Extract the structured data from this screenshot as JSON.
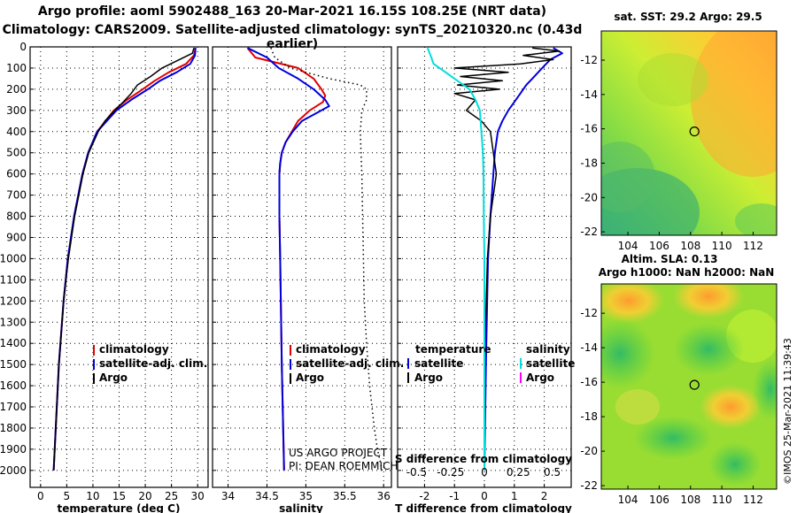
{
  "title_line1": "Argo profile: aoml 5902488_163 20-Mar-2021 16.15S 108.25E (NRT data)",
  "title_line2": "Climatology: CARS2009. Satellite-adjusted climatology: synTS_20210320.nc (0.43d earlier)",
  "y_ticks": [
    "0",
    "100",
    "200",
    "300",
    "400",
    "500",
    "600",
    "700",
    "800",
    "900",
    "1000",
    "1100",
    "1200",
    "1300",
    "1400",
    "1500",
    "1600",
    "1700",
    "1800",
    "1900",
    "2000"
  ],
  "colors": {
    "climatology": "#e00000",
    "satellite": "#0000dd",
    "argo": "#000000",
    "cyan": "#00dddd",
    "magenta": "#ff00ff"
  },
  "chart_data": [
    {
      "type": "line",
      "name": "temperature profile",
      "xlabel": "temperature (deg C)",
      "ylabel": "depth (dbar)",
      "xlim": [
        -2,
        32
      ],
      "ylim": [
        2080,
        0
      ],
      "x_ticks": [
        "0",
        "5",
        "10",
        "15",
        "20",
        "25",
        "30"
      ],
      "legend": [
        "climatology",
        "satellite-adj. clim.",
        "Argo"
      ],
      "series": [
        {
          "name": "climatology",
          "depth": [
            5,
            40,
            80,
            120,
            160,
            200,
            250,
            300,
            400,
            500,
            600,
            800,
            1000,
            1200,
            1500,
            2000
          ],
          "values": [
            29.6,
            29.3,
            27.8,
            24.5,
            21.8,
            19.5,
            16.5,
            14.0,
            10.8,
            9.1,
            8.0,
            6.4,
            5.2,
            4.4,
            3.5,
            2.5
          ]
        },
        {
          "name": "satellite-adj. clim.",
          "depth": [
            5,
            40,
            80,
            120,
            160,
            200,
            250,
            300,
            400,
            500,
            600,
            800,
            1000,
            1200,
            1500,
            2000
          ],
          "values": [
            29.6,
            29.5,
            28.6,
            26.0,
            22.8,
            20.5,
            17.3,
            14.5,
            10.8,
            9.1,
            8.0,
            6.4,
            5.2,
            4.4,
            3.5,
            2.5
          ]
        },
        {
          "name": "Argo",
          "depth": [
            5,
            30,
            60,
            100,
            140,
            180,
            220,
            260,
            300,
            350,
            400,
            500,
            600,
            800,
            1000,
            1200,
            1500,
            2000
          ],
          "values": [
            29.3,
            29.0,
            26.5,
            23.2,
            21.0,
            18.5,
            17.3,
            15.8,
            14.2,
            12.3,
            11.0,
            9.2,
            8.1,
            6.5,
            5.3,
            4.4,
            3.5,
            2.5
          ]
        }
      ]
    },
    {
      "type": "line",
      "name": "salinity profile",
      "xlabel": "salinity",
      "ylabel": "depth (dbar)",
      "xlim": [
        33.8,
        36.1
      ],
      "ylim": [
        2080,
        0
      ],
      "x_ticks": [
        "34",
        "34.5",
        "35",
        "35.5",
        "36"
      ],
      "legend": [
        "climatology",
        "satellite-adj. clim.",
        "Argo"
      ],
      "annotations": [
        "US ARGO PROJECT",
        "PI: DEAN ROEMMICH"
      ],
      "series": [
        {
          "name": "climatology",
          "depth": [
            5,
            50,
            100,
            150,
            200,
            230,
            260,
            300,
            350,
            400,
            450,
            500,
            550,
            600,
            700,
            800,
            1000,
            1500,
            2000
          ],
          "values": [
            34.25,
            34.35,
            34.9,
            35.1,
            35.2,
            35.25,
            35.22,
            35.05,
            34.9,
            34.82,
            34.74,
            34.69,
            34.67,
            34.66,
            34.66,
            34.66,
            34.67,
            34.69,
            34.72
          ]
        },
        {
          "name": "satellite-adj. clim.",
          "depth": [
            5,
            50,
            100,
            150,
            200,
            250,
            280,
            300,
            350,
            400,
            450,
            500,
            550,
            600,
            700,
            800,
            1000,
            1500,
            2000
          ],
          "values": [
            34.25,
            34.5,
            34.65,
            34.9,
            35.1,
            35.25,
            35.3,
            35.2,
            34.95,
            34.83,
            34.74,
            34.69,
            34.67,
            34.66,
            34.66,
            34.66,
            34.67,
            34.69,
            34.72
          ]
        },
        {
          "name": "Argo",
          "depth": [
            5,
            50,
            100,
            150,
            180,
            200,
            250,
            300,
            400,
            500,
            600,
            800,
            1000,
            1200,
            1400,
            1600,
            1800,
            1900,
            2000
          ],
          "values": [
            34.55,
            34.6,
            34.8,
            35.3,
            35.7,
            35.78,
            35.78,
            35.72,
            35.7,
            35.71,
            35.72,
            35.73,
            35.74,
            35.75,
            35.78,
            35.82,
            35.88,
            35.92,
            35.98
          ]
        }
      ]
    },
    {
      "type": "line",
      "name": "difference from climatology",
      "xlabel": "T difference from climatology",
      "x2label": "S difference from climatology",
      "xlim": [
        -2.9,
        2.9
      ],
      "ylim": [
        2080,
        0
      ],
      "x_ticks": [
        "-2",
        "-1",
        "0",
        "1",
        "2"
      ],
      "x2_ticks": [
        "-0.5",
        "-0.25",
        "0",
        "0.25",
        "0.5"
      ],
      "legend_temperature": [
        "satellite",
        "Argo"
      ],
      "legend_salinity": [
        "satellite",
        "Argo"
      ],
      "legend_temperature_title": "temperature",
      "legend_salinity_title": "salinity",
      "series": [
        {
          "name": "temperature satellite",
          "depth": [
            5,
            30,
            60,
            90,
            120,
            150,
            180,
            220,
            260,
            300,
            350,
            400,
            500,
            600,
            800,
            1000,
            1500,
            2000
          ],
          "values": [
            2.3,
            2.6,
            2.2,
            2.0,
            1.8,
            1.6,
            1.4,
            1.2,
            1.0,
            0.8,
            0.6,
            0.45,
            0.35,
            0.3,
            0.2,
            0.12,
            0.05,
            0.0
          ]
        },
        {
          "name": "temperature Argo",
          "depth": [
            5,
            20,
            40,
            60,
            80,
            100,
            120,
            140,
            160,
            180,
            200,
            220,
            250,
            300,
            350,
            400,
            500,
            600,
            800,
            1000,
            1500,
            2000
          ],
          "values": [
            1.6,
            2.5,
            1.3,
            2.3,
            1.2,
            -1.0,
            0.8,
            -0.8,
            0.6,
            -0.9,
            0.5,
            -1.0,
            -0.3,
            -0.6,
            -0.1,
            0.2,
            0.3,
            0.4,
            0.2,
            0.1,
            0.0,
            0.0
          ]
        },
        {
          "name": "salinity satellite",
          "depth": [
            5,
            40,
            80,
            120,
            160,
            200,
            250,
            300,
            400,
            500,
            600,
            800,
            1000,
            1500,
            2000
          ],
          "values": [
            -1.9,
            -1.8,
            -1.7,
            -1.3,
            -0.9,
            -0.5,
            -0.3,
            -0.15,
            -0.1,
            -0.05,
            -0.03,
            -0.02,
            0.0,
            0.0,
            0.0
          ]
        }
      ]
    },
    {
      "type": "heatmap",
      "name": "satellite SST map",
      "title": "sat. SST: 29.2 Argo: 29.5",
      "x_ticks": [
        "104",
        "106",
        "108",
        "110",
        "112"
      ],
      "y_ticks": [
        "-12",
        "-14",
        "-16",
        "-18",
        "-20",
        "-22"
      ],
      "xlim": [
        102.3,
        113.5
      ],
      "ylim": [
        -22.2,
        -10.3
      ],
      "marker": {
        "lon": 108.25,
        "lat": -16.15
      }
    },
    {
      "type": "heatmap",
      "name": "altimetry SLA map",
      "title": "Altim. SLA: 0.13",
      "subtitle": "Argo h1000: NaN h2000: NaN",
      "x_ticks": [
        "104",
        "106",
        "108",
        "110",
        "112"
      ],
      "y_ticks": [
        "-12",
        "-14",
        "-16",
        "-18",
        "-20",
        "-22"
      ],
      "xlim": [
        102.3,
        113.5
      ],
      "ylim": [
        -22.2,
        -10.3
      ],
      "marker": {
        "lon": 108.25,
        "lat": -16.15
      }
    }
  ],
  "credit": "©IMOS 25-Mar-2021 11:39:43"
}
